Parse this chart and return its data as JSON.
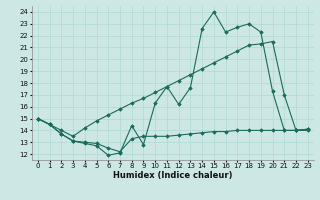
{
  "xlabel": "Humidex (Indice chaleur)",
  "background_color": "#cde8e4",
  "grid_color": "#b0d8d4",
  "line_color": "#1a6b5a",
  "xlim": [
    -0.5,
    23.5
  ],
  "ylim": [
    11.5,
    24.5
  ],
  "yticks": [
    12,
    13,
    14,
    15,
    16,
    17,
    18,
    19,
    20,
    21,
    22,
    23,
    24
  ],
  "xticks": [
    0,
    1,
    2,
    3,
    4,
    5,
    6,
    7,
    8,
    9,
    10,
    11,
    12,
    13,
    14,
    15,
    16,
    17,
    18,
    19,
    20,
    21,
    22,
    23
  ],
  "line1_x": [
    0,
    1,
    2,
    3,
    4,
    5,
    6,
    7,
    8,
    9,
    10,
    11,
    12,
    13,
    14,
    15,
    16,
    17,
    18,
    19,
    20,
    21,
    22,
    23
  ],
  "line1_y": [
    15.0,
    14.5,
    13.7,
    13.1,
    12.9,
    12.7,
    11.9,
    12.1,
    14.4,
    12.8,
    16.3,
    17.7,
    16.2,
    17.6,
    22.6,
    24.0,
    22.3,
    22.7,
    23.0,
    22.3,
    17.3,
    14.0,
    14.0,
    14.1
  ],
  "line2_x": [
    0,
    1,
    2,
    3,
    4,
    5,
    6,
    7,
    8,
    9,
    10,
    11,
    12,
    13,
    14,
    15,
    16,
    17,
    18,
    19,
    20,
    21,
    22,
    23
  ],
  "line2_y": [
    15.0,
    14.5,
    13.7,
    13.1,
    13.0,
    12.9,
    12.5,
    12.2,
    13.3,
    13.5,
    13.5,
    13.5,
    13.6,
    13.7,
    13.8,
    13.9,
    13.9,
    14.0,
    14.0,
    14.0,
    14.0,
    14.0,
    14.0,
    14.0
  ],
  "line3_x": [
    0,
    1,
    2,
    3,
    4,
    5,
    6,
    7,
    8,
    9,
    10,
    11,
    12,
    13,
    14,
    15,
    16,
    17,
    18,
    19,
    20,
    21,
    22,
    23
  ],
  "line3_y": [
    15.0,
    14.5,
    14.0,
    13.5,
    14.2,
    14.8,
    15.3,
    15.8,
    16.3,
    16.7,
    17.2,
    17.7,
    18.2,
    18.7,
    19.2,
    19.7,
    20.2,
    20.7,
    21.2,
    21.3,
    21.5,
    17.0,
    14.0,
    14.1
  ]
}
